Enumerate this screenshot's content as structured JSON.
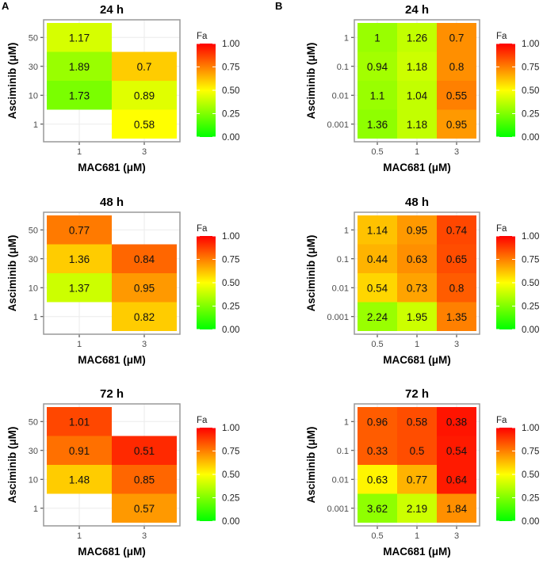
{
  "panel_labels": [
    "A",
    "B"
  ],
  "chart_data": [
    {
      "type": "heatmap",
      "panel": "A",
      "title": "24 h",
      "xlabel": "MAC681 (μM)",
      "ylabel": "Asciminib (μM)",
      "x_categories": [
        "1",
        "3"
      ],
      "y_categories": [
        "1",
        "10",
        "30",
        "50"
      ],
      "legend": {
        "title": "Fa",
        "ticks": [
          "0.00",
          "0.25",
          "0.50",
          "0.75",
          "1.00"
        ],
        "range": [
          0,
          1
        ],
        "colors": [
          "#00ff00",
          "#ffff00",
          "#ff0000"
        ]
      },
      "cells": [
        {
          "x": "1",
          "y": "50",
          "label": "1.17",
          "fa": 0.42
        },
        {
          "x": "1",
          "y": "30",
          "label": "1.89",
          "fa": 0.3
        },
        {
          "x": "1",
          "y": "10",
          "label": "1.73",
          "fa": 0.24
        },
        {
          "x": "3",
          "y": "30",
          "label": "0.7",
          "fa": 0.6
        },
        {
          "x": "3",
          "y": "10",
          "label": "0.89",
          "fa": 0.44
        },
        {
          "x": "3",
          "y": "1",
          "label": "0.58",
          "fa": 0.5
        }
      ]
    },
    {
      "type": "heatmap",
      "panel": "A",
      "title": "48 h",
      "xlabel": "MAC681 (μM)",
      "ylabel": "Asciminib (μM)",
      "x_categories": [
        "1",
        "3"
      ],
      "y_categories": [
        "1",
        "10",
        "30",
        "50"
      ],
      "legend": {
        "title": "Fa",
        "ticks": [
          "0.00",
          "0.25",
          "0.50",
          "0.75",
          "1.00"
        ],
        "range": [
          0,
          1
        ],
        "colors": [
          "#00ff00",
          "#ffff00",
          "#ff0000"
        ]
      },
      "cells": [
        {
          "x": "1",
          "y": "50",
          "label": "0.77",
          "fa": 0.76
        },
        {
          "x": "1",
          "y": "30",
          "label": "1.36",
          "fa": 0.6
        },
        {
          "x": "1",
          "y": "10",
          "label": "1.37",
          "fa": 0.4
        },
        {
          "x": "3",
          "y": "30",
          "label": "0.84",
          "fa": 0.8
        },
        {
          "x": "3",
          "y": "10",
          "label": "0.95",
          "fa": 0.7
        },
        {
          "x": "3",
          "y": "1",
          "label": "0.82",
          "fa": 0.6
        }
      ]
    },
    {
      "type": "heatmap",
      "panel": "A",
      "title": "72 h",
      "xlabel": "MAC681 (μM)",
      "ylabel": "Asciminib (μM)",
      "x_categories": [
        "1",
        "3"
      ],
      "y_categories": [
        "1",
        "10",
        "30",
        "50"
      ],
      "legend": {
        "title": "Fa",
        "ticks": [
          "0.00",
          "0.25",
          "0.50",
          "0.75",
          "1.00"
        ],
        "range": [
          0,
          1
        ],
        "colors": [
          "#00ff00",
          "#ffff00",
          "#ff0000"
        ]
      },
      "cells": [
        {
          "x": "1",
          "y": "50",
          "label": "1.01",
          "fa": 0.86
        },
        {
          "x": "1",
          "y": "30",
          "label": "0.91",
          "fa": 0.78
        },
        {
          "x": "1",
          "y": "10",
          "label": "1.48",
          "fa": 0.6
        },
        {
          "x": "3",
          "y": "30",
          "label": "0.51",
          "fa": 0.92
        },
        {
          "x": "3",
          "y": "10",
          "label": "0.85",
          "fa": 0.8
        },
        {
          "x": "3",
          "y": "1",
          "label": "0.57",
          "fa": 0.7
        }
      ]
    },
    {
      "type": "heatmap",
      "panel": "B",
      "title": "24 h",
      "xlabel": "MAC681 (μM)",
      "ylabel": "Asciminib (μM)",
      "x_categories": [
        "0.5",
        "1",
        "3"
      ],
      "y_categories": [
        "0.001",
        "0.01",
        "0.1",
        "1"
      ],
      "legend": {
        "title": "Fa",
        "ticks": [
          "0.00",
          "0.25",
          "0.50",
          "0.75",
          "1.00"
        ],
        "range": [
          0,
          1
        ],
        "colors": [
          "#00ff00",
          "#ffff00",
          "#ff0000"
        ]
      },
      "cells": [
        {
          "x": "0.5",
          "y": "1",
          "label": "1",
          "fa": 0.3
        },
        {
          "x": "1",
          "y": "1",
          "label": "1.26",
          "fa": 0.38
        },
        {
          "x": "3",
          "y": "1",
          "label": "0.7",
          "fa": 0.72
        },
        {
          "x": "0.5",
          "y": "0.1",
          "label": "0.94",
          "fa": 0.32
        },
        {
          "x": "1",
          "y": "0.1",
          "label": "1.18",
          "fa": 0.4
        },
        {
          "x": "3",
          "y": "0.1",
          "label": "0.8",
          "fa": 0.72
        },
        {
          "x": "0.5",
          "y": "0.01",
          "label": "1.1",
          "fa": 0.3
        },
        {
          "x": "1",
          "y": "0.01",
          "label": "1.04",
          "fa": 0.38
        },
        {
          "x": "3",
          "y": "0.01",
          "label": "0.55",
          "fa": 0.75
        },
        {
          "x": "0.5",
          "y": "0.001",
          "label": "1.36",
          "fa": 0.28
        },
        {
          "x": "1",
          "y": "0.001",
          "label": "1.18",
          "fa": 0.38
        },
        {
          "x": "3",
          "y": "0.001",
          "label": "0.95",
          "fa": 0.7
        }
      ]
    },
    {
      "type": "heatmap",
      "panel": "B",
      "title": "48 h",
      "xlabel": "MAC681 (μM)",
      "ylabel": "Asciminib (μM)",
      "x_categories": [
        "0.5",
        "1",
        "3"
      ],
      "y_categories": [
        "0.001",
        "0.01",
        "0.1",
        "1"
      ],
      "legend": {
        "title": "Fa",
        "ticks": [
          "0.00",
          "0.25",
          "0.50",
          "0.75",
          "1.00"
        ],
        "range": [
          0,
          1
        ],
        "colors": [
          "#00ff00",
          "#ffff00",
          "#ff0000"
        ]
      },
      "cells": [
        {
          "x": "0.5",
          "y": "1",
          "label": "1.14",
          "fa": 0.62
        },
        {
          "x": "1",
          "y": "1",
          "label": "0.95",
          "fa": 0.7
        },
        {
          "x": "3",
          "y": "1",
          "label": "0.74",
          "fa": 0.86
        },
        {
          "x": "0.5",
          "y": "0.1",
          "label": "0.44",
          "fa": 0.65
        },
        {
          "x": "1",
          "y": "0.1",
          "label": "0.63",
          "fa": 0.72
        },
        {
          "x": "3",
          "y": "0.1",
          "label": "0.65",
          "fa": 0.85
        },
        {
          "x": "0.5",
          "y": "0.01",
          "label": "0.54",
          "fa": 0.58
        },
        {
          "x": "1",
          "y": "0.01",
          "label": "0.73",
          "fa": 0.68
        },
        {
          "x": "3",
          "y": "0.01",
          "label": "0.8",
          "fa": 0.82
        },
        {
          "x": "0.5",
          "y": "0.001",
          "label": "2.24",
          "fa": 0.3
        },
        {
          "x": "1",
          "y": "0.001",
          "label": "1.95",
          "fa": 0.4
        },
        {
          "x": "3",
          "y": "0.001",
          "label": "1.35",
          "fa": 0.75
        }
      ]
    },
    {
      "type": "heatmap",
      "panel": "B",
      "title": "72 h",
      "xlabel": "MAC681 (μM)",
      "ylabel": "Asciminib (μM)",
      "x_categories": [
        "0.5",
        "1",
        "3"
      ],
      "y_categories": [
        "0.001",
        "0.01",
        "0.1",
        "1"
      ],
      "legend": {
        "title": "Fa",
        "ticks": [
          "0.00",
          "0.25",
          "0.50",
          "0.75",
          "1.00"
        ],
        "range": [
          0,
          1
        ],
        "colors": [
          "#00ff00",
          "#ffff00",
          "#ff0000"
        ]
      },
      "cells": [
        {
          "x": "0.5",
          "y": "1",
          "label": "0.96",
          "fa": 0.82
        },
        {
          "x": "1",
          "y": "1",
          "label": "0.58",
          "fa": 0.85
        },
        {
          "x": "3",
          "y": "1",
          "label": "0.38",
          "fa": 0.96
        },
        {
          "x": "0.5",
          "y": "0.1",
          "label": "0.33",
          "fa": 0.82
        },
        {
          "x": "1",
          "y": "0.1",
          "label": "0.5",
          "fa": 0.85
        },
        {
          "x": "3",
          "y": "0.1",
          "label": "0.54",
          "fa": 0.95
        },
        {
          "x": "0.5",
          "y": "0.01",
          "label": "0.63",
          "fa": 0.52
        },
        {
          "x": "1",
          "y": "0.01",
          "label": "0.77",
          "fa": 0.65
        },
        {
          "x": "3",
          "y": "0.01",
          "label": "0.64",
          "fa": 0.95
        },
        {
          "x": "0.5",
          "y": "0.001",
          "label": "3.62",
          "fa": 0.28
        },
        {
          "x": "1",
          "y": "0.001",
          "label": "2.19",
          "fa": 0.4
        },
        {
          "x": "3",
          "y": "0.001",
          "label": "1.84",
          "fa": 0.72
        }
      ]
    }
  ]
}
